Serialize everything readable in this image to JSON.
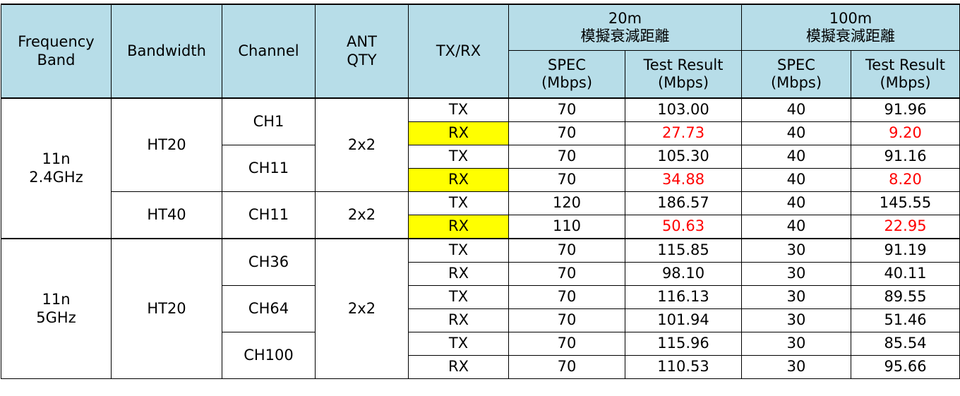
{
  "colors": {
    "header_bg": "#b7dde8",
    "highlight_bg": "#ffff00",
    "fail_text": "#ff0000"
  },
  "header": {
    "frequency_band": "Frequency Band",
    "bandwidth": "Bandwidth",
    "channel": "Channel",
    "ant_qty": "ANT QTY",
    "txrx": "TX/RX",
    "group_20m": "20m 模擬衰減距離",
    "group_100m": "100m 模擬衰減距離",
    "spec": "SPEC (Mbps)",
    "test_result": "Test Result (Mbps)"
  },
  "bands": [
    {
      "label": "11n 2.4GHz",
      "groups": [
        {
          "bandwidth": "HT20",
          "ant": "2x2",
          "channels": [
            {
              "name": "CH1",
              "rows": [
                {
                  "dir": "TX",
                  "spec20": "70",
                  "res20": "103.00",
                  "spec100": "40",
                  "res100": "91.96",
                  "highlight": false
                },
                {
                  "dir": "RX",
                  "spec20": "70",
                  "res20": "27.73",
                  "spec100": "40",
                  "res100": "9.20",
                  "highlight": true
                }
              ]
            },
            {
              "name": "CH11",
              "rows": [
                {
                  "dir": "TX",
                  "spec20": "70",
                  "res20": "105.30",
                  "spec100": "40",
                  "res100": "91.16",
                  "highlight": false
                },
                {
                  "dir": "RX",
                  "spec20": "70",
                  "res20": "34.88",
                  "spec100": "40",
                  "res100": "8.20",
                  "highlight": true
                }
              ]
            }
          ]
        },
        {
          "bandwidth": "HT40",
          "ant": "2x2",
          "channels": [
            {
              "name": "CH11",
              "rows": [
                {
                  "dir": "TX",
                  "spec20": "120",
                  "res20": "186.57",
                  "spec100": "40",
                  "res100": "145.55",
                  "highlight": false
                },
                {
                  "dir": "RX",
                  "spec20": "110",
                  "res20": "50.63",
                  "spec100": "40",
                  "res100": "22.95",
                  "highlight": true
                }
              ]
            }
          ]
        }
      ]
    },
    {
      "label": "11n 5GHz",
      "groups": [
        {
          "bandwidth": "HT20",
          "ant": "2x2",
          "channels": [
            {
              "name": "CH36",
              "rows": [
                {
                  "dir": "TX",
                  "spec20": "70",
                  "res20": "115.85",
                  "spec100": "30",
                  "res100": "91.19",
                  "highlight": false
                },
                {
                  "dir": "RX",
                  "spec20": "70",
                  "res20": "98.10",
                  "spec100": "30",
                  "res100": "40.11",
                  "highlight": false
                }
              ]
            },
            {
              "name": "CH64",
              "rows": [
                {
                  "dir": "TX",
                  "spec20": "70",
                  "res20": "116.13",
                  "spec100": "30",
                  "res100": "89.55",
                  "highlight": false
                },
                {
                  "dir": "RX",
                  "spec20": "70",
                  "res20": "101.94",
                  "spec100": "30",
                  "res100": "51.46",
                  "highlight": false
                }
              ]
            },
            {
              "name": "CH100",
              "rows": [
                {
                  "dir": "TX",
                  "spec20": "70",
                  "res20": "115.96",
                  "spec100": "30",
                  "res100": "85.54",
                  "highlight": false
                },
                {
                  "dir": "RX",
                  "spec20": "70",
                  "res20": "110.53",
                  "spec100": "30",
                  "res100": "95.66",
                  "highlight": false
                }
              ]
            }
          ]
        }
      ]
    }
  ]
}
